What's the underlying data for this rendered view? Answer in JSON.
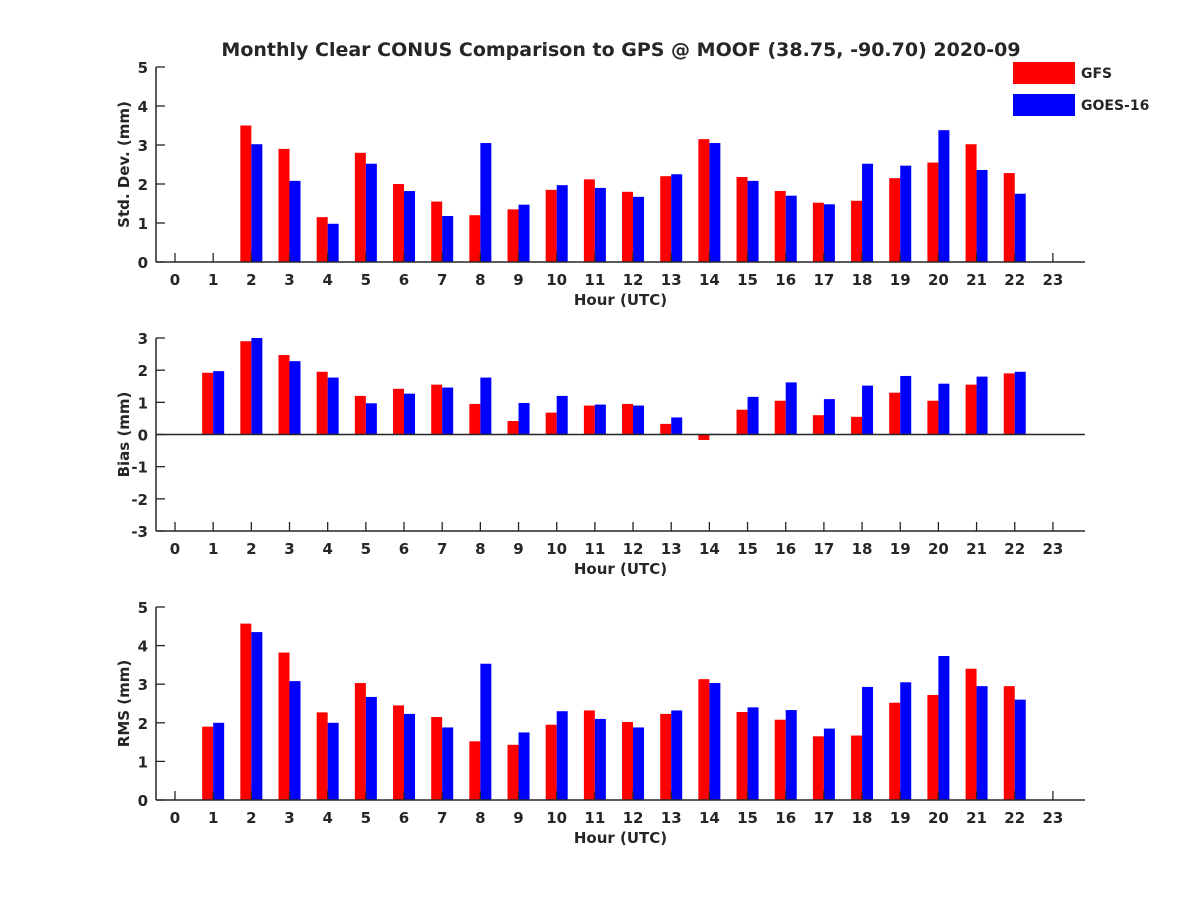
{
  "title": "Monthly Clear CONUS Comparison to GPS @ MOOF (38.75, -90.70) 2020-09",
  "legend": {
    "placement": "top-right",
    "items": [
      {
        "name": "GFS",
        "color": "#ff0000"
      },
      {
        "name": "GOES-16",
        "color": "#0000ff"
      }
    ]
  },
  "chart_data": [
    {
      "type": "bar",
      "ylabel": "Std. Dev. (mm)",
      "xlabel": "Hour (UTC)",
      "ylim": [
        0,
        5
      ],
      "yticks": [
        0,
        1,
        2,
        3,
        4,
        5
      ],
      "categories": [
        "0",
        "1",
        "2",
        "3",
        "4",
        "5",
        "6",
        "7",
        "8",
        "9",
        "10",
        "11",
        "12",
        "13",
        "14",
        "15",
        "16",
        "17",
        "18",
        "19",
        "20",
        "21",
        "22",
        "23"
      ],
      "series": [
        {
          "name": "GFS",
          "color": "#ff0000",
          "values": [
            null,
            null,
            3.5,
            2.9,
            1.15,
            2.8,
            2.0,
            1.55,
            1.2,
            1.35,
            1.85,
            2.12,
            1.8,
            2.2,
            3.15,
            2.18,
            1.82,
            1.52,
            1.57,
            2.15,
            2.55,
            3.02,
            2.28,
            null
          ]
        },
        {
          "name": "GOES-16",
          "color": "#0000ff",
          "values": [
            null,
            null,
            3.02,
            2.08,
            0.98,
            2.52,
            1.82,
            1.18,
            3.05,
            1.47,
            1.97,
            1.9,
            1.67,
            2.25,
            3.05,
            2.08,
            1.7,
            1.48,
            2.52,
            2.47,
            3.38,
            2.36,
            1.75,
            null
          ]
        }
      ]
    },
    {
      "type": "bar",
      "ylabel": "Bias (mm)",
      "xlabel": "Hour (UTC)",
      "ylim": [
        -3,
        3
      ],
      "yticks": [
        -3,
        -2,
        -1,
        0,
        1,
        2,
        3
      ],
      "categories": [
        "0",
        "1",
        "2",
        "3",
        "4",
        "5",
        "6",
        "7",
        "8",
        "9",
        "10",
        "11",
        "12",
        "13",
        "14",
        "15",
        "16",
        "17",
        "18",
        "19",
        "20",
        "21",
        "22",
        "23"
      ],
      "series": [
        {
          "name": "GFS",
          "color": "#ff0000",
          "values": [
            null,
            1.92,
            2.9,
            2.47,
            1.95,
            1.2,
            1.42,
            1.55,
            0.95,
            0.42,
            0.68,
            0.9,
            0.95,
            0.33,
            -0.17,
            0.77,
            1.05,
            0.6,
            0.55,
            1.3,
            1.05,
            1.55,
            1.9,
            null
          ]
        },
        {
          "name": "GOES-16",
          "color": "#0000ff",
          "values": [
            null,
            1.97,
            3.0,
            2.28,
            1.77,
            0.97,
            1.27,
            1.46,
            1.77,
            0.98,
            1.2,
            0.93,
            0.9,
            0.53,
            0.02,
            1.17,
            1.62,
            1.1,
            1.52,
            1.82,
            1.58,
            1.8,
            1.95,
            null
          ]
        }
      ]
    },
    {
      "type": "bar",
      "ylabel": "RMS (mm)",
      "xlabel": "Hour (UTC)",
      "ylim": [
        0,
        5
      ],
      "yticks": [
        0,
        1,
        2,
        3,
        4,
        5
      ],
      "categories": [
        "0",
        "1",
        "2",
        "3",
        "4",
        "5",
        "6",
        "7",
        "8",
        "9",
        "10",
        "11",
        "12",
        "13",
        "14",
        "15",
        "16",
        "17",
        "18",
        "19",
        "20",
        "21",
        "22",
        "23"
      ],
      "series": [
        {
          "name": "GFS",
          "color": "#ff0000",
          "values": [
            null,
            1.9,
            4.57,
            3.82,
            2.27,
            3.03,
            2.45,
            2.15,
            1.52,
            1.43,
            1.95,
            2.32,
            2.02,
            2.23,
            3.13,
            2.28,
            2.08,
            1.65,
            1.67,
            2.52,
            2.72,
            3.4,
            2.95,
            null
          ]
        },
        {
          "name": "GOES-16",
          "color": "#0000ff",
          "values": [
            null,
            2.0,
            4.35,
            3.08,
            2.0,
            2.67,
            2.23,
            1.88,
            3.53,
            1.75,
            2.3,
            2.1,
            1.88,
            2.32,
            3.03,
            2.4,
            2.33,
            1.85,
            2.93,
            3.05,
            3.73,
            2.95,
            2.6,
            null
          ]
        }
      ]
    }
  ]
}
